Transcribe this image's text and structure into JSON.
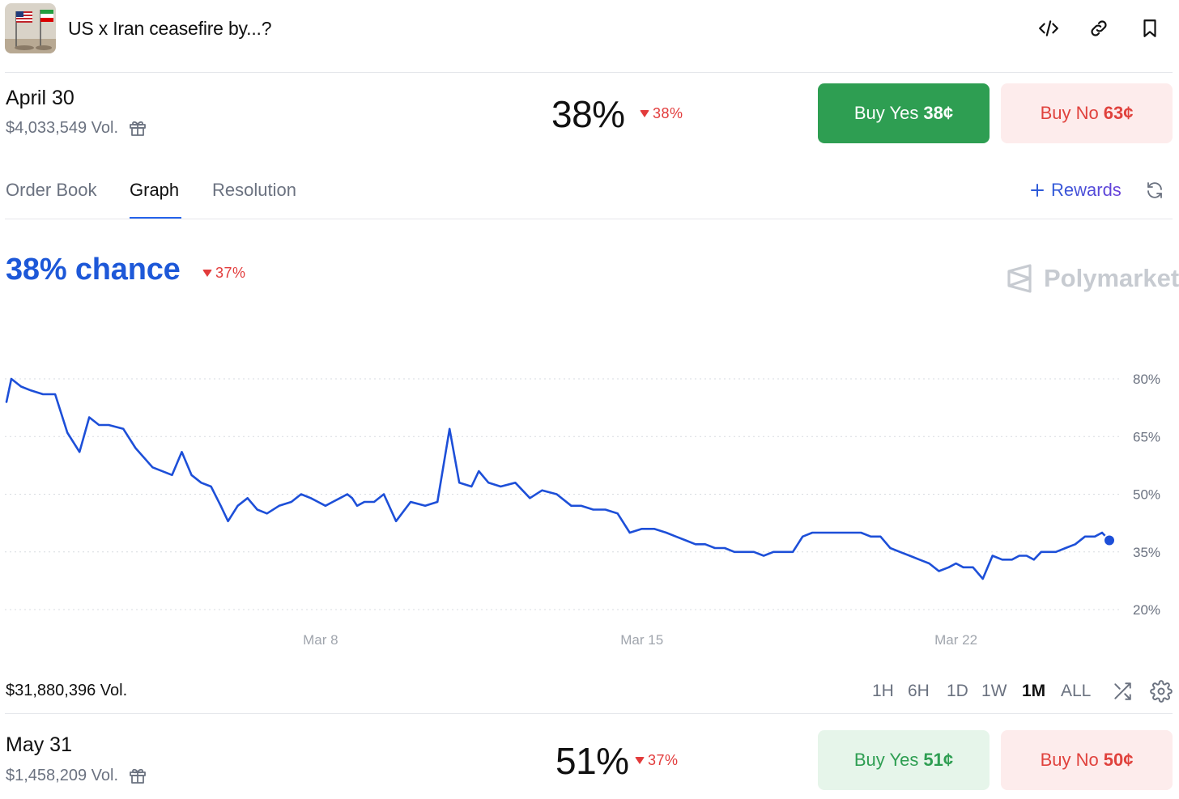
{
  "header": {
    "title": "US x Iran ceasefire by...?",
    "icons": [
      "code-icon",
      "link-icon",
      "bookmark-icon"
    ]
  },
  "outcome1": {
    "date": "April 30",
    "volume": "$4,033,549 Vol.",
    "percent": "38%",
    "change": "38%",
    "buy_yes_label": "Buy Yes",
    "buy_yes_price": "38¢",
    "buy_no_label": "Buy No",
    "buy_no_price": "63¢"
  },
  "tabs": {
    "order_book": "Order Book",
    "graph": "Graph",
    "resolution": "Resolution",
    "rewards": "Rewards"
  },
  "chance": {
    "text": "38% chance",
    "change": "37%",
    "brand": "Polymarket"
  },
  "chart_data": {
    "type": "line",
    "title": "",
    "xlabel": "",
    "ylabel": "",
    "x_ticks": [
      "Mar 8",
      "Mar 15",
      "Mar 22"
    ],
    "y_ticks": [
      "80%",
      "65%",
      "50%",
      "35%",
      "20%"
    ],
    "ylim": [
      20,
      80
    ],
    "grid": true,
    "series": [
      {
        "color": "#1d4fd8",
        "x_days": [
          0,
          0.2,
          0.6,
          1,
          1.5,
          2,
          2.5,
          3,
          3.4,
          3.8,
          4.2,
          4.8,
          5.3,
          6,
          6.8,
          7.2,
          7.6,
          8,
          8.4,
          8.8,
          9.1,
          9.5,
          9.9,
          10.3,
          10.7,
          11.2,
          11.7,
          12.1,
          12.5,
          12.8,
          13.1,
          13.4,
          13.7,
          14.0,
          14.2,
          14.4,
          14.7,
          15.1,
          15.5,
          16,
          16.6,
          17.2,
          17.7,
          18.2,
          18.6,
          19.1,
          19.4,
          19.8,
          20.3,
          20.9,
          21.5,
          22.0,
          22.6,
          23.2,
          23.6,
          24.1,
          24.6,
          25.1,
          25.6,
          26.1,
          26.6,
          27.1,
          27.5,
          27.9,
          28.3,
          28.7,
          29.1,
          29.5,
          29.9,
          30.3,
          30.7,
          31.1,
          31.5,
          31.9,
          32.3,
          32.7,
          33.1,
          33.5,
          33.9,
          34.3,
          34.7,
          35.1,
          35.5,
          35.9,
          36.3,
          36.7,
          37.1,
          37.5,
          37.9,
          38.3,
          38.7,
          39.0,
          39.3,
          39.7,
          40.1,
          40.5,
          40.9,
          41.3,
          41.6,
          41.9,
          42.2,
          42.5,
          42.8,
          43.1,
          43.5,
          43.9,
          44.3,
          44.7,
          45.0,
          45.3
        ],
        "values": [
          74,
          80,
          78,
          77,
          76,
          76,
          66,
          61,
          70,
          68,
          68,
          67,
          62,
          57,
          55,
          61,
          55,
          53,
          52,
          47,
          43,
          47,
          49,
          46,
          45,
          47,
          48,
          50,
          49,
          48,
          47,
          48,
          49,
          50,
          49,
          47,
          48,
          48,
          50,
          43,
          48,
          47,
          48,
          67,
          53,
          52,
          56,
          53,
          52,
          53,
          49,
          51,
          50,
          47,
          47,
          46,
          46,
          45,
          40,
          41,
          41,
          40,
          39,
          38,
          37,
          37,
          36,
          36,
          35,
          35,
          35,
          34,
          35,
          35,
          35,
          39,
          40,
          40,
          40,
          40,
          40,
          40,
          39,
          39,
          36,
          35,
          34,
          33,
          32,
          30,
          31,
          32,
          31,
          31,
          28,
          34,
          33,
          33,
          34,
          34,
          33,
          35,
          35,
          35,
          36,
          37,
          39,
          39,
          40,
          38
        ]
      }
    ]
  },
  "footer": {
    "volume": "$31,880,396 Vol.",
    "ranges": [
      "1H",
      "6H",
      "1D",
      "1W",
      "1M",
      "ALL"
    ],
    "active_range": "1M"
  },
  "outcome2": {
    "date": "May 31",
    "volume": "$1,458,209 Vol.",
    "percent": "51%",
    "change": "37%",
    "buy_yes_label": "Buy Yes",
    "buy_yes_price": "51¢",
    "buy_no_label": "Buy No",
    "buy_no_price": "50¢"
  }
}
